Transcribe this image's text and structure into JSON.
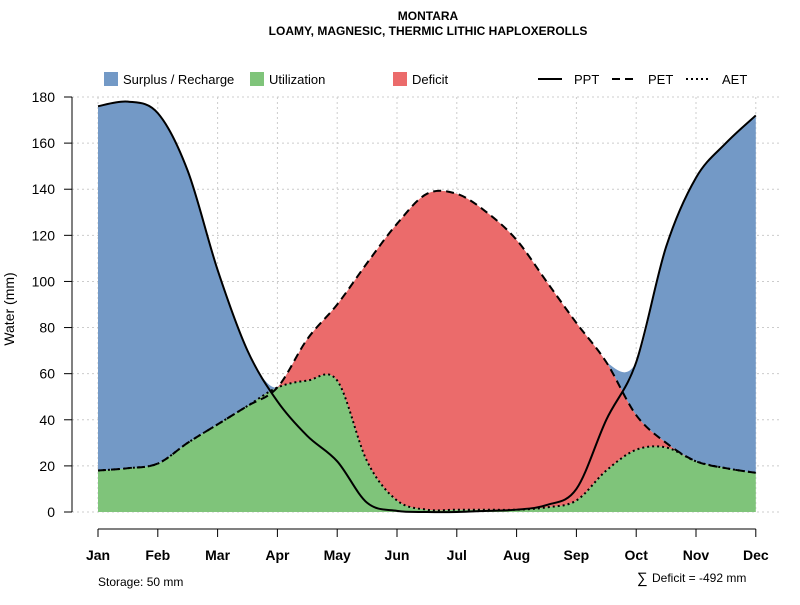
{
  "chart_data": {
    "type": "area",
    "title": "MONTARA",
    "subtitle": "LOAMY, MAGNESIC, THERMIC LITHIC HAPLOXEROLLS",
    "ylabel": "Water (mm)",
    "xlabel": "",
    "ylim": [
      0,
      180
    ],
    "yticks": [
      0,
      20,
      40,
      60,
      80,
      100,
      120,
      140,
      160,
      180
    ],
    "categories": [
      "Jan",
      "Feb",
      "Mar",
      "Apr",
      "May",
      "Jun",
      "Jul",
      "Aug",
      "Sep",
      "Oct",
      "Nov",
      "Dec"
    ],
    "x": [
      0,
      0.5,
      1,
      1.5,
      2,
      2.5,
      3,
      3.5,
      4,
      4.5,
      5,
      5.5,
      6,
      6.5,
      7,
      7.5,
      8,
      8.5,
      9,
      9.5,
      10,
      10.5,
      11
    ],
    "series": [
      {
        "name": "PPT",
        "line": "solid",
        "values": [
          176,
          178,
          173,
          148,
          105,
          70,
          48,
          33,
          22,
          4,
          0.5,
          0,
          0,
          0.5,
          1,
          3,
          10,
          40,
          65,
          115,
          145,
          160,
          172
        ]
      },
      {
        "name": "PET",
        "line": "dashed",
        "values": [
          18,
          19,
          21,
          30,
          38,
          46,
          54,
          75,
          90,
          108,
          125,
          138,
          138,
          130,
          118,
          100,
          82,
          65,
          42,
          30,
          22,
          19,
          17
        ]
      },
      {
        "name": "AET",
        "line": "dotted",
        "values": [
          18,
          19,
          21,
          30,
          38,
          46,
          54,
          57,
          57,
          22,
          5,
          1,
          1,
          1,
          1,
          2,
          5,
          18,
          27,
          28,
          22,
          19,
          17
        ]
      }
    ],
    "fills": [
      {
        "name": "Surplus / Recharge",
        "color": "#7399c6",
        "between": [
          "PPT",
          "PET"
        ],
        "where": "PPT above PET"
      },
      {
        "name": "Utilization",
        "color": "#7fc47a",
        "between": [
          "AET",
          "zero"
        ]
      },
      {
        "name": "Deficit",
        "color": "#eb6b6b",
        "between": [
          "PET",
          "AET"
        ]
      }
    ],
    "grid": true,
    "grid_color": "#cccccc",
    "legend": [
      {
        "label": "Surplus / Recharge",
        "kind": "fill",
        "color": "#7399c6"
      },
      {
        "label": "Utilization",
        "kind": "fill",
        "color": "#7fc47a"
      },
      {
        "label": "Deficit",
        "kind": "fill",
        "color": "#eb6b6b"
      },
      {
        "label": "PPT",
        "kind": "line",
        "dash": "solid"
      },
      {
        "label": "PET",
        "kind": "line",
        "dash": "dashed"
      },
      {
        "label": "AET",
        "kind": "line",
        "dash": "dotted"
      }
    ],
    "legend_position": "top",
    "storage_label": "Storage: 50 mm",
    "deficit_symbol": "∑",
    "deficit_label": "Deficit = -492 mm"
  }
}
